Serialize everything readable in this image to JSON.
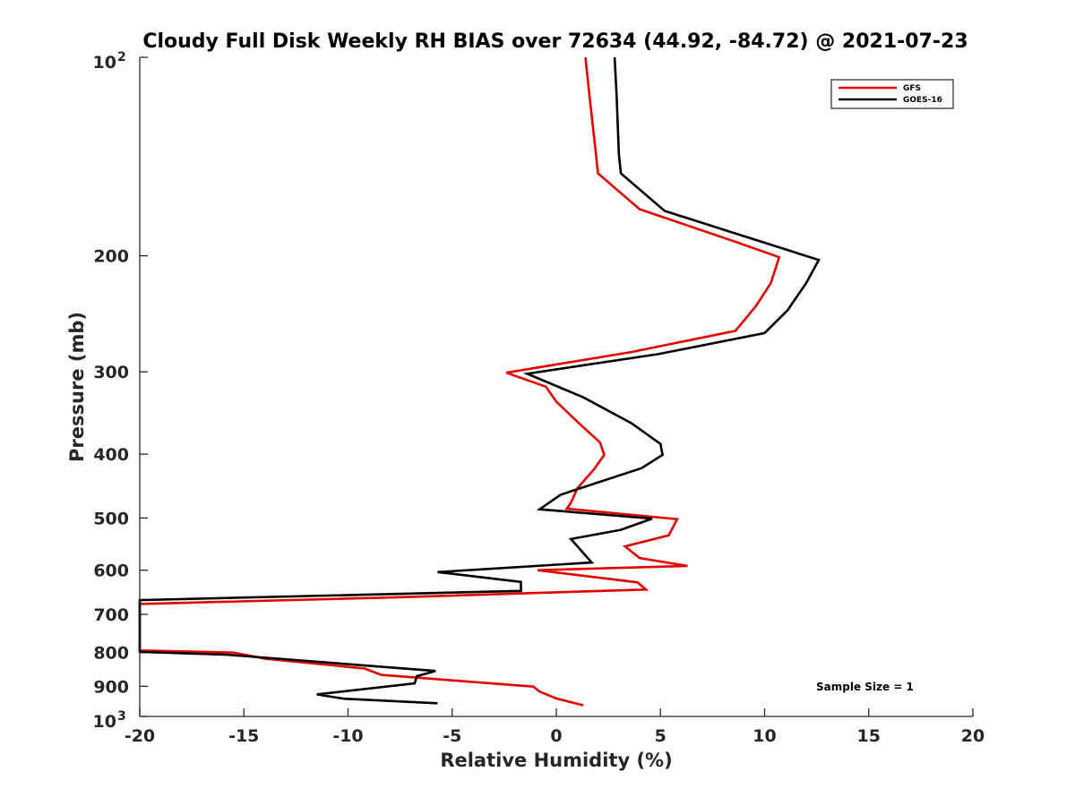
{
  "chart_data": {
    "type": "line",
    "title": "Cloudy Full Disk Weekly RH BIAS over 72634 (44.92, -84.72) @ 2021-07-23",
    "xlabel": "Relative Humidity (%)",
    "ylabel": "Pressure (mb)",
    "xlim": [
      -20,
      20
    ],
    "ylim": [
      1000,
      100
    ],
    "y_scale": "log",
    "x_ticks": [
      "-20",
      "-15",
      "-10",
      "-5",
      "0",
      "5",
      "10",
      "15",
      "20"
    ],
    "y_ticks": [
      {
        "label": "10",
        "sup": "2"
      },
      {
        "label": "200",
        "sup": ""
      },
      {
        "label": "300",
        "sup": ""
      },
      {
        "label": "400",
        "sup": ""
      },
      {
        "label": "500",
        "sup": ""
      },
      {
        "label": "600",
        "sup": ""
      },
      {
        "label": "700",
        "sup": ""
      },
      {
        "label": "800",
        "sup": ""
      },
      {
        "label": "900",
        "sup": ""
      },
      {
        "label": "10",
        "sup": "3"
      }
    ],
    "grid": false,
    "legend_position": "top-right",
    "annotation": "Sample Size = 1",
    "series": [
      {
        "name": "GFS",
        "color": "#e50000",
        "points": [
          [
            1.4,
            100
          ],
          [
            1.6,
            115
          ],
          [
            1.9,
            140
          ],
          [
            2.0,
            150
          ],
          [
            4.0,
            170
          ],
          [
            8.5,
            190
          ],
          [
            10.7,
            201
          ],
          [
            10.3,
            220
          ],
          [
            9.6,
            238
          ],
          [
            8.6,
            260
          ],
          [
            3.6,
            280
          ],
          [
            -2.4,
            301
          ],
          [
            -0.5,
            316
          ],
          [
            0.0,
            333
          ],
          [
            1.0,
            357
          ],
          [
            2.1,
            384
          ],
          [
            2.3,
            401
          ],
          [
            1.8,
            422
          ],
          [
            1.0,
            451
          ],
          [
            0.7,
            474
          ],
          [
            0.5,
            484
          ],
          [
            5.8,
            502
          ],
          [
            5.4,
            531
          ],
          [
            3.3,
            552
          ],
          [
            4.0,
            575
          ],
          [
            6.3,
            591
          ],
          [
            -0.9,
            600
          ],
          [
            3.9,
            626
          ],
          [
            4.3,
            642
          ],
          [
            -8.0,
            660
          ],
          [
            -20.0,
            675
          ],
          [
            -20.0,
            794
          ],
          [
            -15.5,
            800
          ],
          [
            -14.0,
            817
          ],
          [
            -9.2,
            846
          ],
          [
            -8.4,
            865
          ],
          [
            -1.1,
            901
          ],
          [
            -0.8,
            917
          ],
          [
            0.0,
            939
          ],
          [
            1.3,
            962
          ]
        ]
      },
      {
        "name": "GOES-16",
        "color": "#000000",
        "points": [
          [
            2.8,
            100
          ],
          [
            2.9,
            115
          ],
          [
            3.0,
            140
          ],
          [
            3.1,
            150
          ],
          [
            5.2,
            171
          ],
          [
            12.6,
            203
          ],
          [
            12.0,
            220
          ],
          [
            11.1,
            242
          ],
          [
            10.0,
            262
          ],
          [
            4.9,
            282
          ],
          [
            -1.4,
            302
          ],
          [
            1.3,
            328
          ],
          [
            3.6,
            359
          ],
          [
            5.0,
            386
          ],
          [
            5.1,
            401
          ],
          [
            4.1,
            420
          ],
          [
            0.2,
            461
          ],
          [
            -0.8,
            485
          ],
          [
            4.6,
            501
          ],
          [
            3.1,
            521
          ],
          [
            0.7,
            538
          ],
          [
            1.7,
            584
          ],
          [
            -5.7,
            604
          ],
          [
            -1.7,
            625
          ],
          [
            -1.7,
            645
          ],
          [
            -20.0,
            666
          ],
          [
            -20.0,
            798
          ],
          [
            -15.8,
            806
          ],
          [
            -5.8,
            853
          ],
          [
            -6.7,
            869
          ],
          [
            -6.8,
            891
          ],
          [
            -11.5,
            926
          ],
          [
            -10.2,
            940
          ],
          [
            -5.7,
            955
          ]
        ]
      }
    ]
  }
}
